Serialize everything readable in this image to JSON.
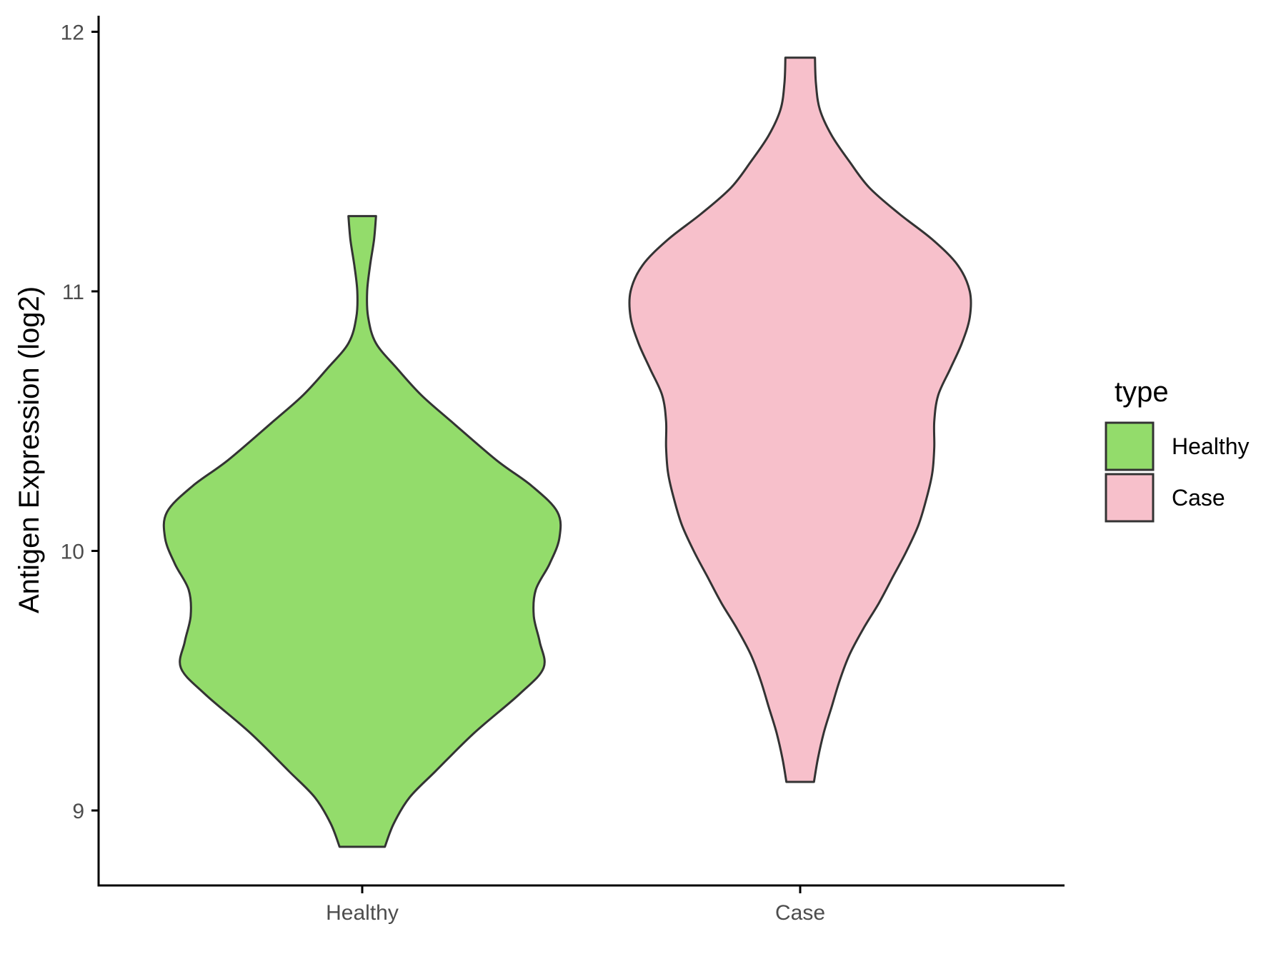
{
  "chart_data": {
    "type": "violin",
    "title": "",
    "xlabel": "",
    "ylabel": "Antigen Expression (log2)",
    "ylim": [
      8.7,
      12.06
    ],
    "yticks": [
      9,
      10,
      11,
      12
    ],
    "categories": [
      "Healthy",
      "Case"
    ],
    "grid": false,
    "legend": {
      "title": "type",
      "position": "right",
      "entries": [
        "Healthy",
        "Case"
      ]
    },
    "series": [
      {
        "name": "Healthy",
        "color": "#93DC6B",
        "min": 8.86,
        "max": 11.29,
        "density_profile": [
          [
            8.86,
            0.115
          ],
          [
            8.95,
            0.16
          ],
          [
            9.05,
            0.24
          ],
          [
            9.15,
            0.37
          ],
          [
            9.3,
            0.57
          ],
          [
            9.45,
            0.8
          ],
          [
            9.55,
            0.92
          ],
          [
            9.65,
            0.9
          ],
          [
            9.75,
            0.87
          ],
          [
            9.85,
            0.88
          ],
          [
            9.95,
            0.95
          ],
          [
            10.05,
            1.0
          ],
          [
            10.15,
            0.99
          ],
          [
            10.25,
            0.86
          ],
          [
            10.35,
            0.68
          ],
          [
            10.5,
            0.45
          ],
          [
            10.6,
            0.3
          ],
          [
            10.7,
            0.18
          ],
          [
            10.8,
            0.07
          ],
          [
            10.9,
            0.03
          ],
          [
            11.0,
            0.025
          ],
          [
            11.1,
            0.04
          ],
          [
            11.2,
            0.06
          ],
          [
            11.29,
            0.07
          ]
        ]
      },
      {
        "name": "Case",
        "color": "#F7C0CB",
        "min": 9.11,
        "max": 11.9,
        "density_profile": [
          [
            9.11,
            0.07
          ],
          [
            9.2,
            0.09
          ],
          [
            9.3,
            0.12
          ],
          [
            9.4,
            0.16
          ],
          [
            9.5,
            0.2
          ],
          [
            9.6,
            0.25
          ],
          [
            9.7,
            0.32
          ],
          [
            9.8,
            0.4
          ],
          [
            9.9,
            0.47
          ],
          [
            10.0,
            0.54
          ],
          [
            10.1,
            0.6
          ],
          [
            10.2,
            0.64
          ],
          [
            10.3,
            0.67
          ],
          [
            10.4,
            0.68
          ],
          [
            10.5,
            0.68
          ],
          [
            10.6,
            0.7
          ],
          [
            10.7,
            0.76
          ],
          [
            10.8,
            0.82
          ],
          [
            10.9,
            0.86
          ],
          [
            11.0,
            0.86
          ],
          [
            11.1,
            0.8
          ],
          [
            11.2,
            0.67
          ],
          [
            11.3,
            0.5
          ],
          [
            11.4,
            0.35
          ],
          [
            11.5,
            0.25
          ],
          [
            11.6,
            0.16
          ],
          [
            11.7,
            0.1
          ],
          [
            11.8,
            0.08
          ],
          [
            11.9,
            0.075
          ]
        ]
      }
    ]
  }
}
